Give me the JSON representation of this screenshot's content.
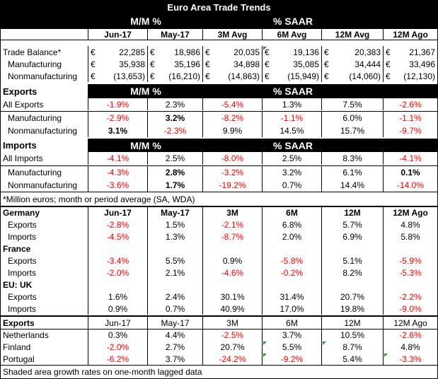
{
  "title": "Euro Area Trade Trends",
  "header1": {
    "mm": "M/M %",
    "saar": "% SAAR"
  },
  "header2": [
    "Jun-17",
    "May-17",
    "3M Avg",
    "6M Avg",
    "12M Avg",
    "12M Ago"
  ],
  "euro_sign": "€",
  "trade_balance": {
    "label": "Trade Balance*",
    "values": [
      "22,285",
      "18,986",
      "20,035",
      "19,136",
      "20,383",
      "21,367"
    ]
  },
  "manufacturing_bal": {
    "label": "Manufacturing",
    "values": [
      "35,938",
      "35,196",
      "34,898",
      "35,085",
      "34,444",
      "33,496"
    ]
  },
  "nonmanufacturing_bal": {
    "label": "Nonmanufacturing",
    "values": [
      "(13,653)",
      "(16,210)",
      "(14,863)",
      "(15,949)",
      "(14,060)",
      "(12,130)"
    ]
  },
  "exports_hdr": {
    "label": "Exports",
    "mm": "M/M %",
    "saar": "% SAAR"
  },
  "all_exports": {
    "label": "All Exports",
    "values": [
      "-1.9%",
      "2.3%",
      "-5.4%",
      "1.3%",
      "7.5%",
      "-2.6%"
    ]
  },
  "exp_manuf": {
    "label": "Manufacturing",
    "values": [
      "-2.9%",
      "3.2%",
      "-8.2%",
      "-1.1%",
      "6.0%",
      "-1.1%"
    ]
  },
  "exp_nonmanuf": {
    "label": "Nonmanufacturing",
    "values": [
      "3.1%",
      "-2.3%",
      "9.9%",
      "14.5%",
      "15.7%",
      "-9.7%"
    ]
  },
  "imports_hdr": {
    "label": "Imports",
    "mm": "M/M %",
    "saar": "% SAAR"
  },
  "all_imports": {
    "label": "All Imports",
    "values": [
      "-4.1%",
      "2.5%",
      "-8.0%",
      "2.5%",
      "8.3%",
      "-4.1%"
    ]
  },
  "imp_manuf": {
    "label": "Manufacturing",
    "values": [
      "-4.3%",
      "2.8%",
      "-3.2%",
      "3.2%",
      "6.1%",
      "0.1%"
    ]
  },
  "imp_nonmanuf": {
    "label": "Nonmanufacturing",
    "values": [
      "-3.6%",
      "1.7%",
      "-19.2%",
      "0.7%",
      "14.4%",
      "-14.0%"
    ]
  },
  "note": "*Million euros; month or period average (SA, WDA)",
  "germany_hdr": {
    "label": "Germany",
    "cols": [
      "Jun-17",
      "May-17",
      "3M",
      "6M",
      "12M",
      "12M Ago"
    ]
  },
  "de_exports": {
    "label": "Exports",
    "values": [
      "-2.8%",
      "1.5%",
      "-2.1%",
      "6.8%",
      "5.7%",
      "4.8%"
    ]
  },
  "de_imports": {
    "label": "Imports",
    "values": [
      "-4.5%",
      "1.3%",
      "-8.7%",
      "2.0%",
      "6.9%",
      "5.8%"
    ]
  },
  "france_hdr": {
    "label": "France"
  },
  "fr_exports": {
    "label": "Exports",
    "values": [
      "-3.4%",
      "5.5%",
      "0.9%",
      "-5.8%",
      "5.1%",
      "-5.9%"
    ]
  },
  "fr_imports": {
    "label": "Imports",
    "values": [
      "-2.0%",
      "2.1%",
      "-4.6%",
      "-0.2%",
      "8.2%",
      "-5.3%"
    ]
  },
  "uk_hdr": {
    "label": "EU: UK"
  },
  "uk_exports": {
    "label": "Exports",
    "values": [
      "1.6%",
      "2.4%",
      "30.1%",
      "31.4%",
      "20.7%",
      "-2.2%"
    ]
  },
  "uk_imports": {
    "label": "Imports",
    "values": [
      "0.9%",
      "0.7%",
      "40.9%",
      "17.0%",
      "19.8%",
      "-9.0%"
    ]
  },
  "exports2_hdr": {
    "label": "Exports",
    "cols": [
      "Jun-17",
      "May-17",
      "3M",
      "6M",
      "12M",
      "12M Ago"
    ]
  },
  "netherlands": {
    "label": "Netherlands",
    "values": [
      "0.3%",
      "4.4%",
      "-2.5%",
      "3.7%",
      "10.5%",
      "-2.6%"
    ]
  },
  "finland": {
    "label": "Finland",
    "values": [
      "-2.0%",
      "2.7%",
      "20.7%",
      "5.5%",
      "8.7%",
      "4.8%"
    ]
  },
  "portugal": {
    "label": "Portugal",
    "values": [
      "-6.2%",
      "3.7%",
      "-24.2%",
      "-9.2%",
      "5.4%",
      "-3.3%"
    ]
  },
  "footnote": "Shaded area growth rates on one-month lagged data",
  "colors": {
    "negative": "#ff0000",
    "header_bg": "#000000",
    "shade": "#f2f2f2"
  }
}
